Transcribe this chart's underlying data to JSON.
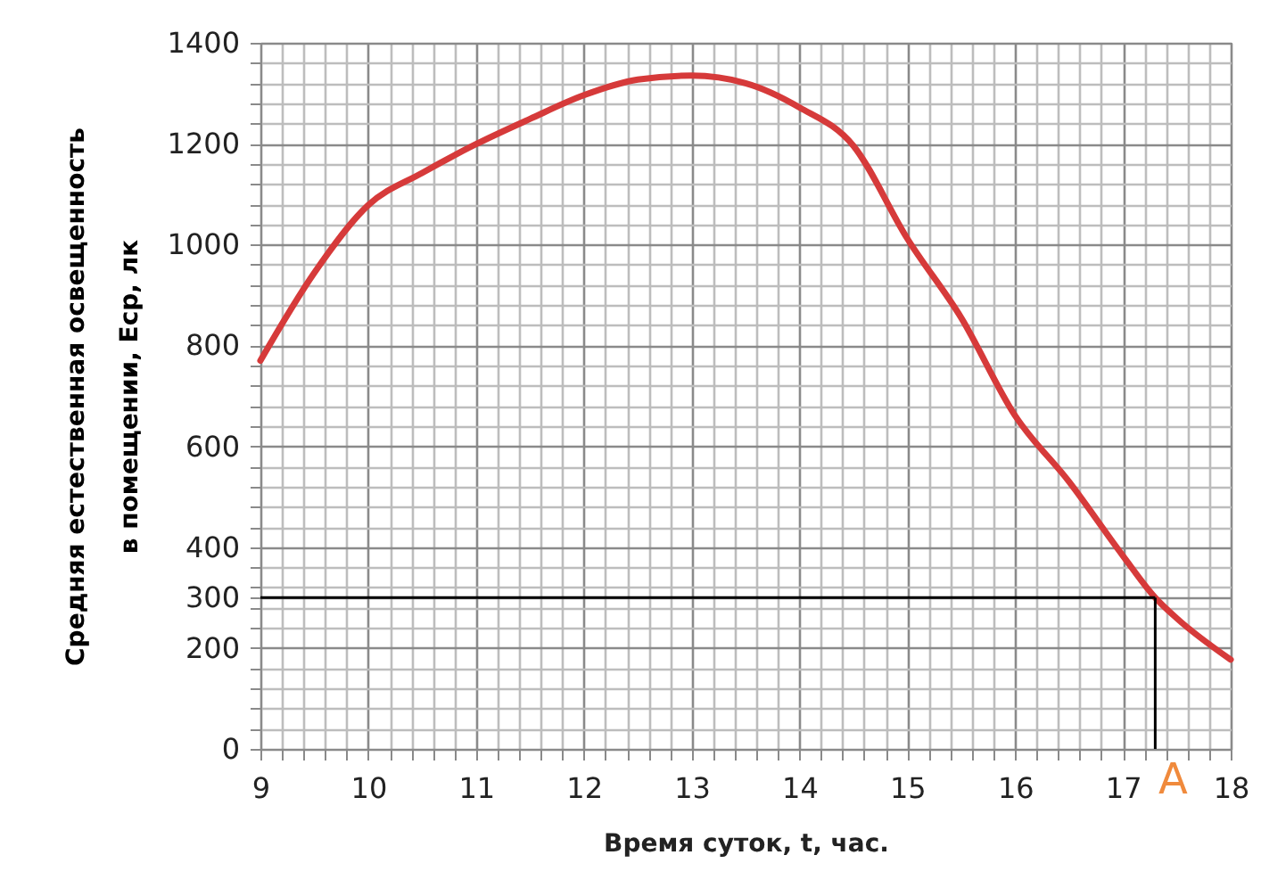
{
  "chart_data": {
    "type": "line",
    "xlabel": "Время суток, t, час.",
    "ylabel": "Средняя естественная  освещенность\nв помещении,  Еср, лк",
    "x": [
      9,
      9.5,
      10,
      10.5,
      11,
      11.5,
      12,
      12.5,
      13,
      13.5,
      14,
      14.5,
      15,
      15.5,
      16,
      16.5,
      17,
      17.3,
      17.5,
      18
    ],
    "series": [
      {
        "color": "#d63a3a",
        "values": [
          770,
          944,
          1078,
          1142,
          1199,
          1249,
          1296,
          1327,
          1335,
          1320,
          1272,
          1196,
          1012,
          855,
          661,
          530,
          383,
          300,
          259,
          177
        ]
      }
    ],
    "xlim": [
      9,
      18
    ],
    "xticks": [
      9,
      10,
      11,
      12,
      13,
      14,
      15,
      16,
      17,
      18
    ],
    "ylim": [
      0,
      1400
    ],
    "yticks": [
      0,
      200,
      300,
      400,
      600,
      800,
      1000,
      1200,
      1400
    ],
    "grid": true,
    "marker": "none",
    "line_style": "solid",
    "ref_lines": [
      {
        "axis": "y",
        "value": 300,
        "color": "#000000"
      },
      {
        "axis": "x",
        "value": 17.3,
        "color": "#000000"
      }
    ],
    "annotations": [
      {
        "text": "A",
        "x": 17.3,
        "y": 0
      }
    ]
  }
}
